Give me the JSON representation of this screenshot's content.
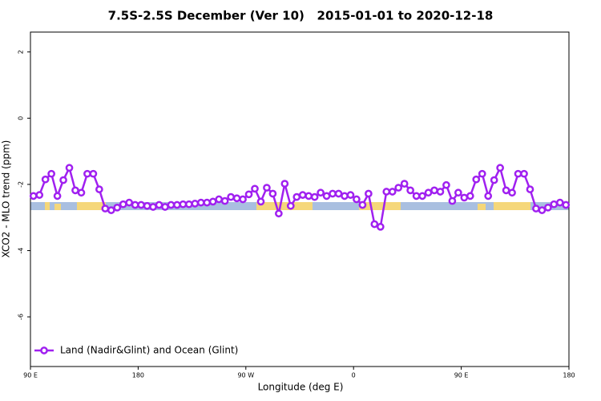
{
  "chart_data": {
    "type": "line",
    "title": "7.5S-2.5S December (Ver 10)   2015-01-01 to 2020-12-18",
    "x_label": "Longitude (deg E)",
    "y_label": "XCO2 - MLO trend (ppm)",
    "x": [
      92.5,
      97.5,
      102.5,
      107.5,
      112.5,
      117.5,
      122.5,
      127.5,
      132.5,
      137.5,
      142.5,
      147.5,
      152.5,
      157.5,
      162.5,
      167.5,
      172.5,
      177.5,
      182.5,
      187.5,
      192.5,
      197.5,
      202.5,
      207.5,
      212.5,
      217.5,
      222.5,
      227.5,
      232.5,
      237.5,
      242.5,
      247.5,
      252.5,
      257.5,
      262.5,
      267.5,
      272.5,
      277.5,
      282.5,
      287.5,
      292.5,
      297.5,
      302.5,
      307.5,
      312.5,
      317.5,
      322.5,
      327.5,
      332.5,
      337.5,
      342.5,
      347.5,
      352.5,
      357.5,
      362.5,
      367.5,
      372.5,
      377.5,
      382.5,
      387.5,
      392.5,
      397.5,
      402.5,
      407.5,
      412.5,
      417.5,
      422.5,
      427.5,
      432.5,
      437.5,
      442.5,
      447.5,
      452.5,
      457.5,
      462.5,
      467.5,
      472.5,
      477.5,
      482.5,
      487.5,
      492.5,
      497.5,
      502.5,
      507.5,
      512.5,
      517.5,
      522.5,
      527.5,
      532.5,
      537.5
    ],
    "series": [
      {
        "name": "Land (Nadir&Glint) and Ocean (Glint)",
        "color": "#a020f0",
        "values": [
          -2.35,
          -2.32,
          -1.85,
          -1.68,
          -2.35,
          -1.87,
          -1.5,
          -2.18,
          -2.25,
          -1.68,
          -1.68,
          -2.15,
          -2.73,
          -2.78,
          -2.7,
          -2.6,
          -2.55,
          -2.62,
          -2.62,
          -2.65,
          -2.68,
          -2.62,
          -2.68,
          -2.62,
          -2.62,
          -2.6,
          -2.6,
          -2.58,
          -2.55,
          -2.55,
          -2.52,
          -2.45,
          -2.5,
          -2.38,
          -2.42,
          -2.45,
          -2.3,
          -2.13,
          -2.52,
          -2.1,
          -2.28,
          -2.88,
          -1.98,
          -2.65,
          -2.38,
          -2.32,
          -2.35,
          -2.38,
          -2.25,
          -2.35,
          -2.28,
          -2.28,
          -2.35,
          -2.32,
          -2.45,
          -2.62,
          -2.28,
          -3.2,
          -3.28,
          -2.22,
          -2.22,
          -2.1,
          -1.98,
          -2.18,
          -2.35,
          -2.35,
          -2.25,
          -2.18,
          -2.22,
          -2.02,
          -2.5,
          -2.25,
          -2.4,
          -2.35,
          -1.85,
          -1.68,
          -2.35,
          -1.87,
          -1.5,
          -2.18,
          -2.25,
          -1.68,
          -1.68,
          -2.15,
          -2.73,
          -2.78,
          -2.7,
          -2.6,
          -2.55,
          -2.62
        ]
      }
    ],
    "xlim": [
      90,
      540
    ],
    "xticks": [
      {
        "value": 90,
        "label": "90 E"
      },
      180,
      {
        "value": 270,
        "label": "90 W"
      },
      {
        "value": 360,
        "label": "0"
      },
      {
        "value": 450,
        "label": "90 E"
      },
      {
        "value": 540,
        "label": "180"
      }
    ],
    "ylim": [
      -7.5,
      2.6
    ],
    "yticks": [
      2,
      0,
      -2,
      -4,
      -6
    ],
    "legend": "bottom-left"
  }
}
